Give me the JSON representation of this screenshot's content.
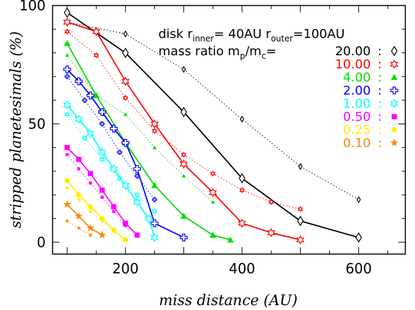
{
  "chart_data": {
    "type": "line",
    "xlabel": "miss distance (AU)",
    "ylabel": "stripped planetesimals (%)",
    "xlim": [
      75,
      680
    ],
    "ylim": [
      -5,
      100
    ],
    "xticks": [
      200,
      400,
      600
    ],
    "yticks": [
      0,
      50,
      100
    ],
    "annotations": {
      "disk_prefix": "disk r",
      "disk_inner_sub": "inner",
      "disk_inner_val": "= 40AU",
      "disk_r2": " r",
      "disk_outer_sub": "outer",
      "disk_outer_val": "=100AU",
      "mass_prefix": "mass ratio m",
      "mass_p_sub": "p",
      "mass_slash": "/m",
      "mass_c_sub": "c",
      "mass_eq": "="
    },
    "legend_labels": [
      "20.00",
      "10.00",
      "4.00",
      "2.00",
      "1.00",
      "0.50",
      "0.25",
      "0.10"
    ],
    "legend_separator": ":",
    "series": [
      {
        "name": "20.00",
        "color": "#000000",
        "marker": "diamond",
        "solid": {
          "x": [
            100,
            200,
            300,
            400,
            500,
            600
          ],
          "y": [
            97,
            80,
            55,
            27,
            9,
            2
          ]
        },
        "dotted": {
          "x": [
            100,
            200,
            300,
            400,
            500,
            600
          ],
          "y": [
            93,
            88,
            73,
            52,
            32,
            18
          ]
        }
      },
      {
        "name": "10.00",
        "color": "#ff0000",
        "marker": "star6",
        "solid": {
          "x": [
            100,
            150,
            200,
            250,
            300,
            350,
            400,
            450,
            500
          ],
          "y": [
            93,
            89,
            68,
            50,
            33,
            21,
            8,
            4,
            1
          ]
        },
        "dotted": {
          "x": [
            100,
            150,
            200,
            250,
            300,
            350,
            400,
            450,
            500
          ],
          "y": [
            89,
            79,
            61,
            47,
            37,
            29,
            22,
            17,
            14
          ]
        }
      },
      {
        "name": "4.00",
        "color": "#00dd00",
        "marker": "triangle",
        "solid": {
          "x": [
            100,
            150,
            200,
            250,
            300,
            350,
            380
          ],
          "y": [
            84,
            62,
            42,
            24,
            11,
            3,
            1
          ]
        },
        "dotted": {
          "x": [
            100,
            150,
            200,
            250,
            300,
            350
          ],
          "y": [
            79,
            62,
            54,
            40,
            28,
            17
          ]
        }
      },
      {
        "name": "2.00",
        "color": "#0000ff",
        "marker": "cross",
        "solid": {
          "x": [
            100,
            120,
            140,
            160,
            180,
            200,
            220,
            250,
            300
          ],
          "y": [
            73,
            68,
            62,
            55,
            48,
            42,
            31,
            8,
            2
          ]
        },
        "dotted": {
          "x": [
            100,
            130,
            160,
            190,
            220,
            250
          ],
          "y": [
            70,
            60,
            50,
            38,
            28,
            18
          ]
        }
      },
      {
        "name": "1.00",
        "color": "#00ffff",
        "marker": "star6",
        "solid": {
          "x": [
            100,
            120,
            140,
            160,
            180,
            200,
            220,
            240,
            250
          ],
          "y": [
            58,
            52,
            46,
            38,
            31,
            24,
            17,
            10,
            2
          ]
        },
        "dotted": {
          "x": [
            100,
            130,
            160,
            190,
            220,
            250
          ],
          "y": [
            54,
            44,
            35,
            27,
            20,
            13
          ]
        }
      },
      {
        "name": "0.50",
        "color": "#ff00ff",
        "marker": "square",
        "solid": {
          "x": [
            100,
            120,
            140,
            160,
            180,
            200,
            220
          ],
          "y": [
            40,
            35,
            29,
            22,
            15,
            8,
            3
          ]
        },
        "dotted": {
          "x": [
            100,
            120,
            140,
            160,
            180,
            200
          ],
          "y": [
            37,
            31,
            25,
            19,
            13,
            7
          ]
        }
      },
      {
        "name": "0.25",
        "color": "#ffee00",
        "marker": "dot",
        "solid": {
          "x": [
            100,
            120,
            140,
            160,
            180,
            200
          ],
          "y": [
            26,
            20,
            15,
            10,
            5,
            1
          ]
        },
        "dotted": {
          "x": [
            100,
            120,
            140,
            160,
            180
          ],
          "y": [
            23,
            18,
            13,
            9,
            5
          ]
        }
      },
      {
        "name": "0.10",
        "color": "#ff8800",
        "marker": "star5",
        "solid": {
          "x": [
            100,
            120,
            140,
            160
          ],
          "y": [
            16,
            11,
            6,
            3
          ]
        },
        "dotted": {
          "x": [
            100,
            120,
            140
          ],
          "y": [
            9,
            6,
            3
          ]
        }
      }
    ]
  }
}
